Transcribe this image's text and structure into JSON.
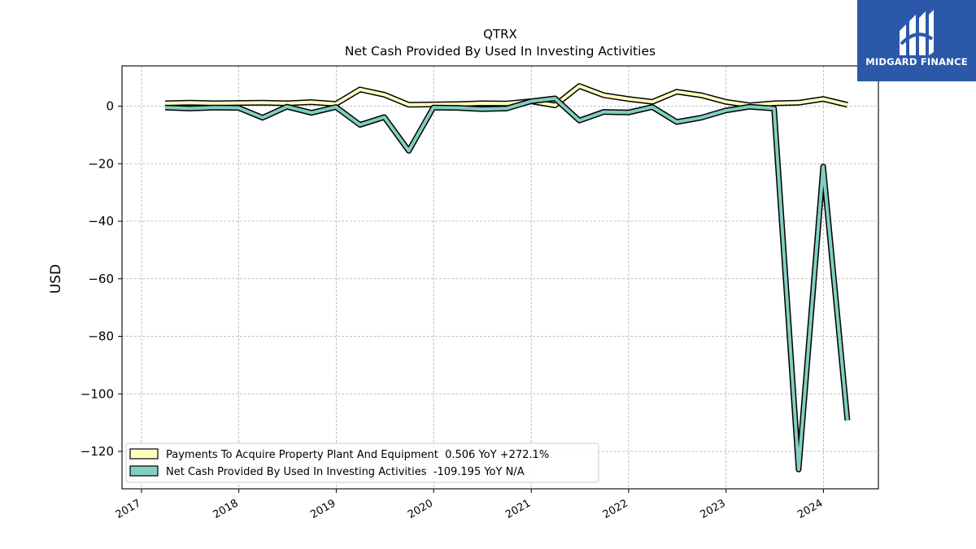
{
  "brand": {
    "name": "MIDGARD FINANCE",
    "logo_icon": "midgard-finance-logo-icon",
    "color": "#2b58a8"
  },
  "chart_data": {
    "type": "line",
    "title": "QTRX",
    "subtitle": "Net Cash Provided By Used In Investing Activities",
    "xlabel": "",
    "ylabel": "USD",
    "xlim": [
      "2016-10-20",
      "2024-07-25"
    ],
    "ylim": [
      -133,
      14
    ],
    "yticks": [
      0,
      -20,
      -40,
      -60,
      -80,
      -100,
      -120
    ],
    "ytick_labels": [
      "0",
      "−20",
      "−40",
      "−60",
      "−80",
      "−100",
      "−120"
    ],
    "xticks": [
      "2017-01-01",
      "2018-01-01",
      "2019-01-01",
      "2020-01-01",
      "2021-01-01",
      "2022-01-01",
      "2023-01-01",
      "2024-01-01"
    ],
    "xtick_labels": [
      "2017",
      "2018",
      "2019",
      "2020",
      "2021",
      "2022",
      "2023",
      "2024"
    ],
    "grid": true,
    "legend_position": "lower-left",
    "x": [
      "2017-03-31",
      "2017-06-30",
      "2017-09-30",
      "2017-12-31",
      "2018-03-31",
      "2018-06-30",
      "2018-09-30",
      "2018-12-31",
      "2019-03-31",
      "2019-06-30",
      "2019-09-30",
      "2019-12-31",
      "2020-03-31",
      "2020-06-30",
      "2020-09-30",
      "2020-12-31",
      "2021-03-31",
      "2021-06-30",
      "2021-09-30",
      "2021-12-31",
      "2022-03-31",
      "2022-06-30",
      "2022-09-30",
      "2022-12-31",
      "2023-03-31",
      "2023-06-30",
      "2023-09-30",
      "2023-12-31",
      "2024-03-31"
    ],
    "series": [
      {
        "name": "Payments To Acquire Property Plant And Equipment  0.506 YoY +272.1%",
        "color": "#ffffc0",
        "values": [
          1.0,
          1.2,
          1.0,
          1.1,
          1.2,
          1.0,
          1.4,
          0.8,
          5.8,
          4.0,
          0.5,
          0.6,
          0.7,
          1.0,
          0.9,
          1.7,
          0.3,
          7.0,
          3.8,
          2.5,
          1.5,
          5.0,
          3.8,
          1.5,
          0.3,
          1.0,
          1.2,
          2.5,
          0.5
        ]
      },
      {
        "name": "Net Cash Provided By Used In Investing Activities  -109.195 YoY N/A",
        "color": "#80cfc0",
        "values": [
          -0.5,
          -0.8,
          -0.5,
          -0.6,
          -4.0,
          -0.2,
          -2.3,
          -0.3,
          -6.5,
          -3.8,
          -15.5,
          -0.5,
          -0.6,
          -1.0,
          -0.8,
          1.7,
          2.7,
          -5.0,
          -2.0,
          -2.2,
          -0.3,
          -5.5,
          -4.0,
          -1.5,
          -0.2,
          -0.8,
          -126.3,
          -21.0,
          -109.2
        ]
      }
    ]
  }
}
